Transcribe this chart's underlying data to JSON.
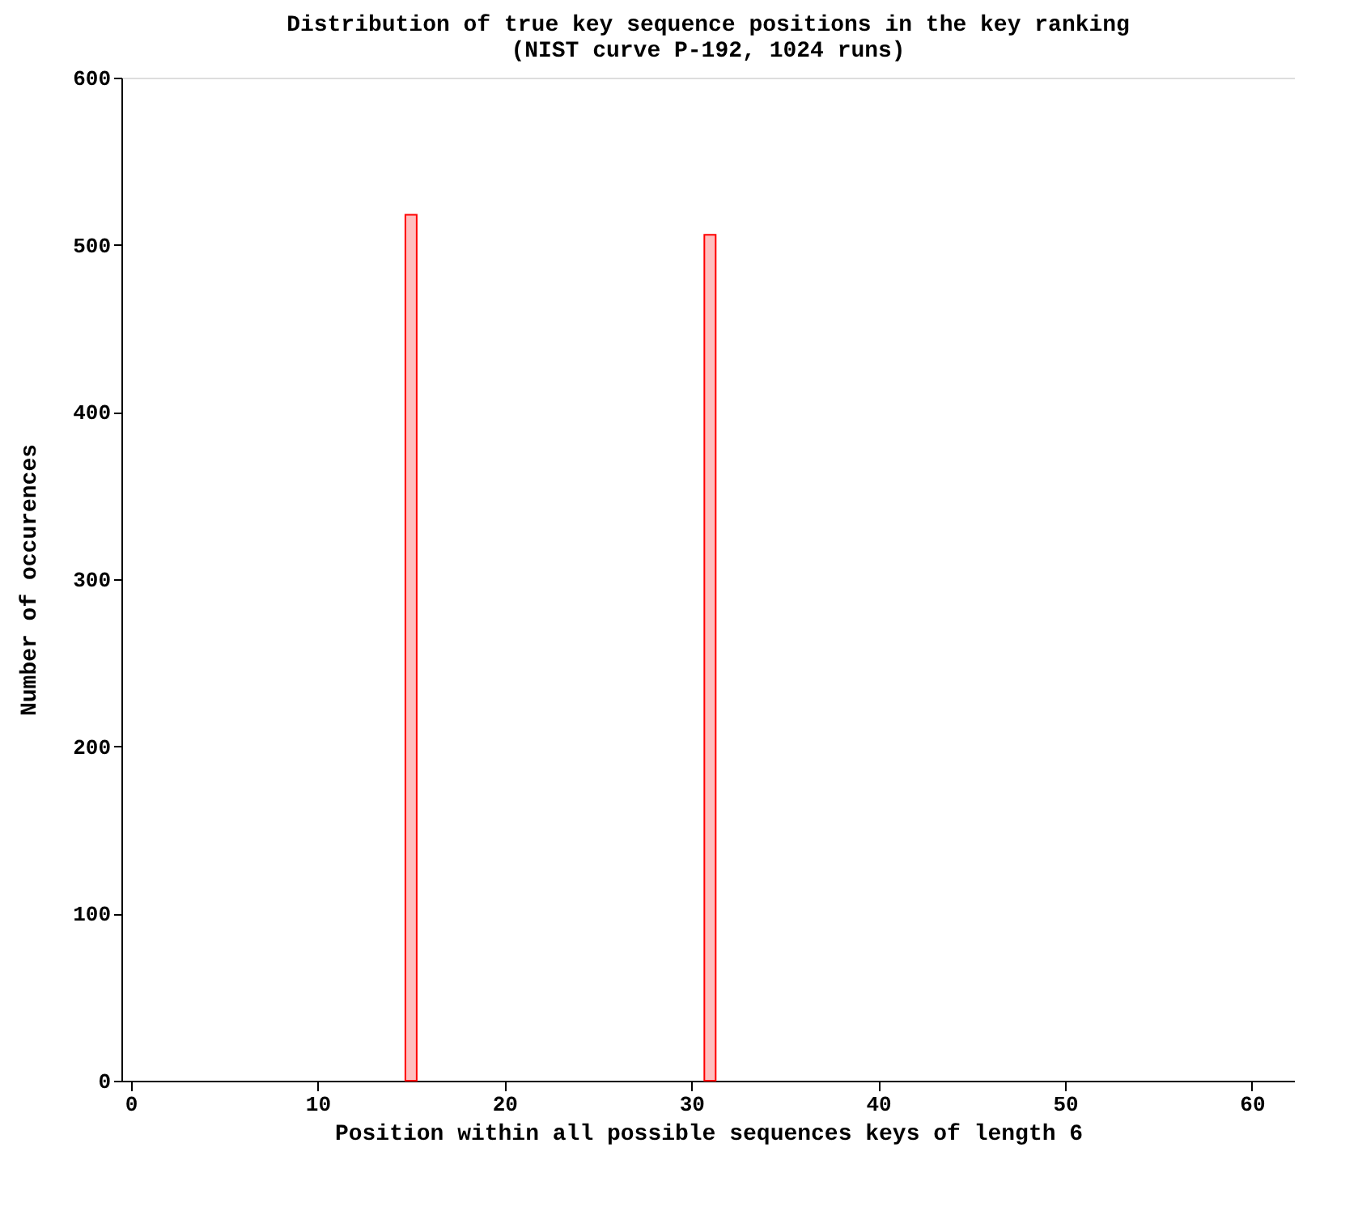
{
  "chart_data": {
    "type": "bar",
    "title": [
      "Distribution of true key sequence positions in the key ranking",
      "(NIST curve P-192, 1024 runs)"
    ],
    "xlabel": "Position within all possible sequences keys of length 6",
    "ylabel": "Number of occurences",
    "x": [
      15,
      31
    ],
    "values": [
      518,
      506
    ],
    "color": "#ff0000",
    "xlim": [
      -0.5,
      62.3
    ],
    "xticks": [
      0,
      10,
      20,
      30,
      40,
      50,
      60
    ],
    "ylim": [
      0,
      600
    ],
    "yticks": [
      0,
      100,
      200,
      300,
      400,
      500,
      600
    ],
    "grid": false
  }
}
